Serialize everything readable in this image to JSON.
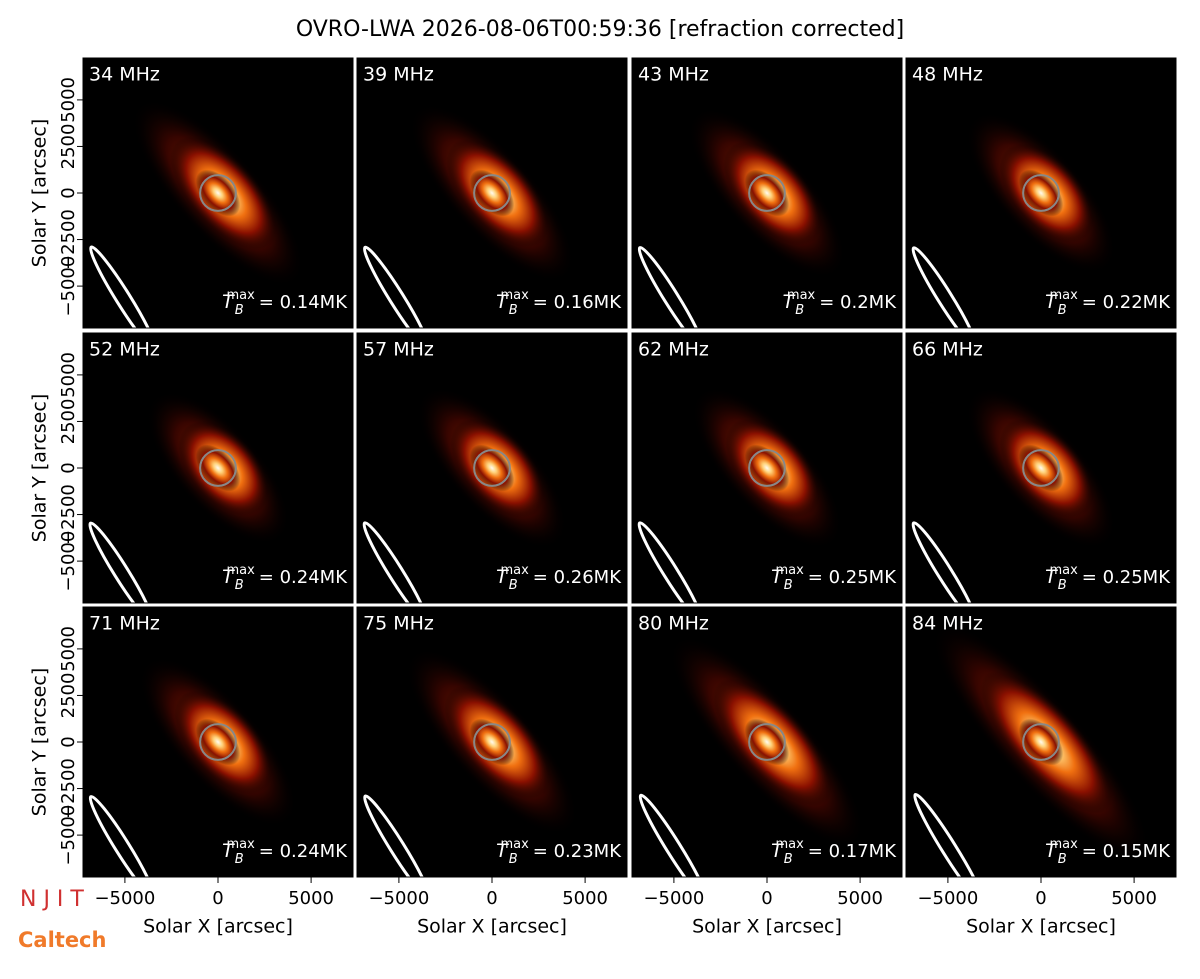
{
  "title": "OVRO-LWA 2026-08-06T00:59:36 [refraction corrected]",
  "tb_symbol": {
    "base": "T",
    "sub": "B",
    "sup": "max"
  },
  "logos": [
    "N J I T",
    "Caltech"
  ],
  "chart_data": [
    {
      "type": "image",
      "title": "34 MHz",
      "annotation": "= 0.14MK",
      "xlim": [
        -7250,
        7250
      ],
      "ylim": [
        -7250,
        7250
      ],
      "ylabel": "Solar Y [arcsec]",
      "yticks": [
        {
          "value": -5000,
          "label": "−5000"
        },
        {
          "value": -2500,
          "label": "−2500"
        },
        0,
        2500,
        5000
      ]
    },
    {
      "type": "image",
      "title": "39 MHz",
      "annotation": "= 0.16MK",
      "xlim": [
        -7250,
        7250
      ],
      "ylim": [
        -7250,
        7250
      ]
    },
    {
      "type": "image",
      "title": "43 MHz",
      "annotation": "= 0.2MK",
      "xlim": [
        -7250,
        7250
      ],
      "ylim": [
        -7250,
        7250
      ]
    },
    {
      "type": "image",
      "title": "48 MHz",
      "annotation": "= 0.22MK",
      "xlim": [
        -7250,
        7250
      ],
      "ylim": [
        -7250,
        7250
      ]
    },
    {
      "type": "image",
      "title": "52 MHz",
      "annotation": "= 0.24MK",
      "xlim": [
        -7250,
        7250
      ],
      "ylim": [
        -7250,
        7250
      ],
      "ylabel": "Solar Y [arcsec]",
      "yticks": [
        {
          "value": -5000,
          "label": "−5000"
        },
        {
          "value": -2500,
          "label": "−2500"
        },
        0,
        2500,
        5000
      ]
    },
    {
      "type": "image",
      "title": "57 MHz",
      "annotation": "= 0.26MK",
      "xlim": [
        -7250,
        7250
      ],
      "ylim": [
        -7250,
        7250
      ]
    },
    {
      "type": "image",
      "title": "62 MHz",
      "annotation": "= 0.25MK",
      "xlim": [
        -7250,
        7250
      ],
      "ylim": [
        -7250,
        7250
      ]
    },
    {
      "type": "image",
      "title": "66 MHz",
      "annotation": "= 0.25MK",
      "xlim": [
        -7250,
        7250
      ],
      "ylim": [
        -7250,
        7250
      ]
    },
    {
      "type": "image",
      "title": "71 MHz",
      "annotation": "= 0.24MK",
      "xlim": [
        -7250,
        7250
      ],
      "ylim": [
        -7250,
        7250
      ],
      "ylabel": "Solar Y [arcsec]",
      "yticks": [
        {
          "value": -5000,
          "label": "−5000"
        },
        {
          "value": -2500,
          "label": "−2500"
        },
        0,
        2500,
        5000
      ],
      "xlabel": "Solar X [arcsec]",
      "xticks": [
        {
          "value": -5000,
          "label": "−5000"
        },
        0,
        5000
      ]
    },
    {
      "type": "image",
      "title": "75 MHz",
      "annotation": "= 0.23MK",
      "xlim": [
        -7250,
        7250
      ],
      "ylim": [
        -7250,
        7250
      ],
      "xlabel": "Solar X [arcsec]",
      "xticks": [
        {
          "value": -5000,
          "label": "−5000"
        },
        0,
        5000
      ]
    },
    {
      "type": "image",
      "title": "80 MHz",
      "annotation": "= 0.17MK",
      "xlim": [
        -7250,
        7250
      ],
      "ylim": [
        -7250,
        7250
      ],
      "xlabel": "Solar X [arcsec]",
      "xticks": [
        {
          "value": -5000,
          "label": "−5000"
        },
        0,
        5000
      ]
    },
    {
      "type": "image",
      "title": "84 MHz",
      "annotation": "= 0.15MK",
      "xlim": [
        -7250,
        7250
      ],
      "ylim": [
        -7250,
        7250
      ],
      "xlabel": "Solar X [arcsec]",
      "xticks": [
        {
          "value": -5000,
          "label": "−5000"
        },
        0,
        5000
      ]
    }
  ]
}
